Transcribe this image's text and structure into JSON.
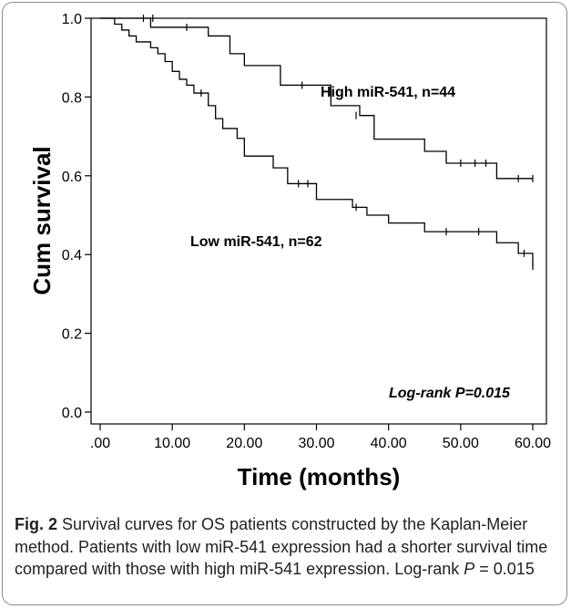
{
  "chart_data": {
    "type": "line",
    "subtype": "kaplan-meier step curve",
    "xlabel": "Time (months)",
    "ylabel": "Cum survival",
    "xlim": [
      0,
      60
    ],
    "ylim": [
      0,
      1.0
    ],
    "x_ticks": [
      0,
      10,
      20,
      30,
      40,
      50,
      60
    ],
    "x_tick_labels": [
      ".00",
      "10.00",
      "20.00",
      "30.00",
      "40.00",
      "50.00",
      "60.00"
    ],
    "y_ticks": [
      0,
      0.2,
      0.4,
      0.6,
      0.8,
      1.0
    ],
    "y_tick_labels": [
      "0.0",
      "0.2",
      "0.4",
      "0.6",
      "0.8",
      "1.0"
    ],
    "grid": false,
    "series": [
      {
        "name": "High miR-541, n=44",
        "steps": [
          [
            0,
            1.0
          ],
          [
            7,
            0.977
          ],
          [
            15,
            0.955
          ],
          [
            18,
            0.91
          ],
          [
            20,
            0.88
          ],
          [
            25,
            0.83
          ],
          [
            32,
            0.778
          ],
          [
            36,
            0.753
          ],
          [
            38,
            0.693
          ],
          [
            45,
            0.662
          ],
          [
            48,
            0.632
          ],
          [
            55,
            0.593
          ],
          [
            60,
            0.593
          ]
        ],
        "censored": [
          [
            6,
            1.0
          ],
          [
            7.3,
            1.0
          ],
          [
            12,
            0.977
          ],
          [
            28,
            0.83
          ],
          [
            35.5,
            0.753
          ],
          [
            50,
            0.632
          ],
          [
            52,
            0.632
          ],
          [
            53.5,
            0.632
          ],
          [
            58,
            0.593
          ],
          [
            60,
            0.593
          ]
        ]
      },
      {
        "name": "Low miR-541, n=62",
        "steps": [
          [
            0,
            1.0
          ],
          [
            2,
            0.985
          ],
          [
            3,
            0.97
          ],
          [
            4,
            0.955
          ],
          [
            5,
            0.94
          ],
          [
            7,
            0.925
          ],
          [
            8,
            0.91
          ],
          [
            9,
            0.89
          ],
          [
            10,
            0.865
          ],
          [
            11,
            0.845
          ],
          [
            12,
            0.83
          ],
          [
            13,
            0.81
          ],
          [
            15,
            0.778
          ],
          [
            16,
            0.745
          ],
          [
            17,
            0.72
          ],
          [
            19,
            0.695
          ],
          [
            20,
            0.65
          ],
          [
            24,
            0.62
          ],
          [
            26,
            0.58
          ],
          [
            30,
            0.54
          ],
          [
            35,
            0.52
          ],
          [
            37,
            0.5
          ],
          [
            40,
            0.48
          ],
          [
            45,
            0.458
          ],
          [
            55,
            0.43
          ],
          [
            58,
            0.403
          ],
          [
            60,
            0.37
          ]
        ],
        "censored": [
          [
            14,
            0.81
          ],
          [
            27.5,
            0.58
          ],
          [
            28.8,
            0.58
          ],
          [
            35.5,
            0.52
          ],
          [
            48,
            0.458
          ],
          [
            52.5,
            0.458
          ],
          [
            58.8,
            0.403
          ],
          [
            60,
            0.37
          ]
        ]
      }
    ],
    "annotations": {
      "high_label": "High miR-541, n=44",
      "low_label": "Low miR-541, n=62",
      "logrank": "Log-rank P=0.015"
    }
  },
  "caption": {
    "label": "Fig. 2",
    "text": " Survival curves for OS patients constructed by the Kaplan-Meier method. Patients with low miR-541 expression had a shorter survival time compared with those with high miR-541 expression. Log-rank ",
    "p_symbol": "P",
    "p_value": " = 0.015"
  }
}
